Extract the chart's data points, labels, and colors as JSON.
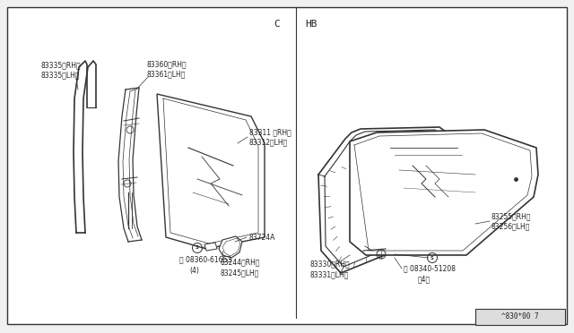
{
  "bg_color": "#f0f0f0",
  "panel_bg": "#ffffff",
  "line_color": "#333333",
  "text_color": "#222222",
  "footer_text": "^830*00 7",
  "label_C": "C",
  "label_HB": "HB",
  "font_size": 5.5,
  "label_font_size": 6.5
}
